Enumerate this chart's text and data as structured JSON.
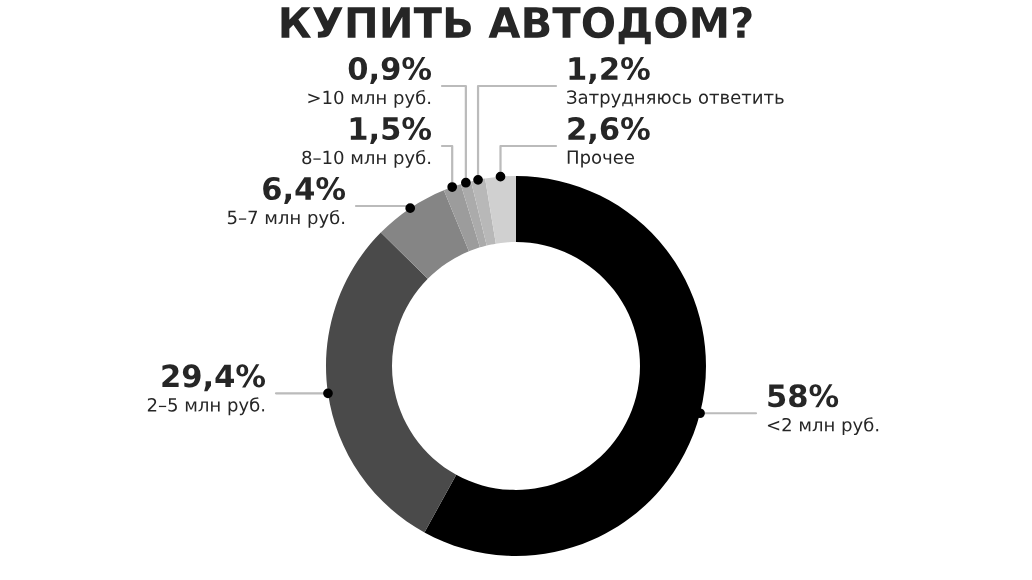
{
  "chart_data": {
    "type": "donut",
    "title": "КУПИТЬ АВТОДОМ?",
    "categories": [
      "<2 млн руб.",
      "2–5 млн руб.",
      "5–7 млн руб.",
      "8–10 млн руб.",
      ">10 млн руб.",
      "Затрудняюсь ответить",
      "Прочее"
    ],
    "values": [
      58,
      29.4,
      6.4,
      1.5,
      0.9,
      1.2,
      2.6
    ],
    "value_labels": [
      "58%",
      "29,4%",
      "6,4%",
      "1,5%",
      "0,9%",
      "1,2%",
      "2,6%"
    ],
    "colors": [
      "#000000",
      "#4a4a4a",
      "#858585",
      "#9c9c9c",
      "#ababab",
      "#b8b8b8",
      "#d0d0d0"
    ]
  }
}
